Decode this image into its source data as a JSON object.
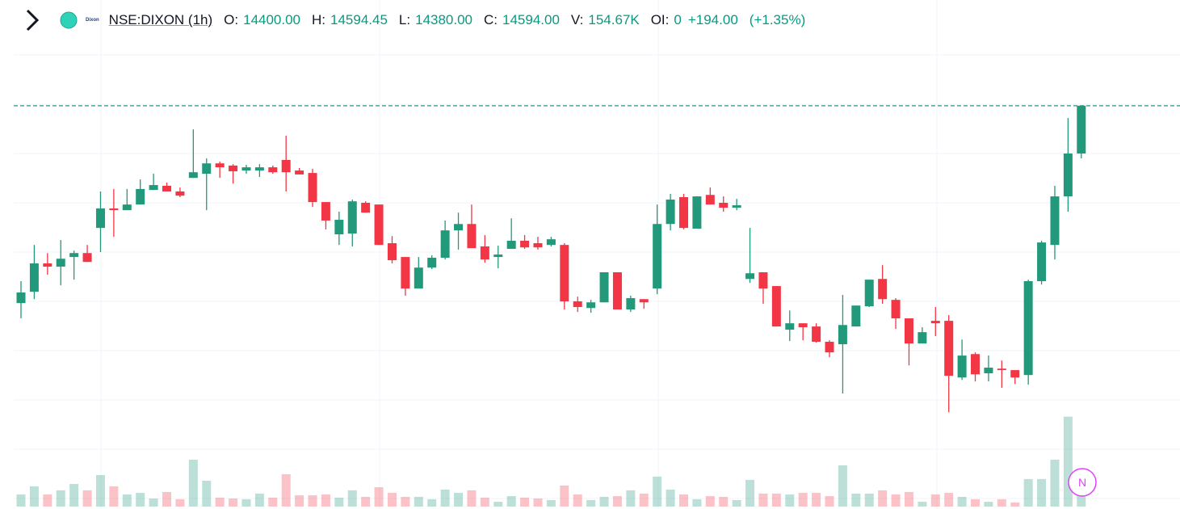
{
  "header": {
    "symbol": "NSE:DIXON (1h)",
    "logo": "Dixon",
    "items": [
      {
        "key": "O:",
        "value": "14400.00"
      },
      {
        "key": "H:",
        "value": "14594.45"
      },
      {
        "key": "L:",
        "value": "14380.00"
      },
      {
        "key": "C:",
        "value": "14594.00"
      },
      {
        "key": "V:",
        "value": "154.67K"
      },
      {
        "key": "OI:",
        "value": "0"
      }
    ],
    "change": "+194.00",
    "change_pct": "(+1.35%)"
  },
  "marker": "N",
  "chart_data": {
    "type": "candlestick",
    "open": [
      13793,
      13839,
      13954,
      13941,
      13980,
      13996,
      14098,
      14177,
      14170,
      14193,
      14252,
      14269,
      14246,
      14301,
      14318,
      14360,
      14351,
      14331,
      14331,
      14344,
      14374,
      14331,
      14321,
      14203,
      14072,
      14075,
      14200,
      14193,
      14036,
      13980,
      13852,
      13937,
      13977,
      14088,
      14114,
      14023,
      13980,
      14013,
      14046,
      14036,
      14029,
      14029,
      13800,
      13773,
      13796,
      13918,
      13767,
      13809,
      13852,
      14114,
      14223,
      14095,
      14232,
      14200,
      14180,
      13891,
      13918,
      13862,
      13685,
      13711,
      13698,
      13636,
      13626,
      13698,
      13780,
      13891,
      13806,
      13731,
      13629,
      13721,
      13721,
      13491,
      13586,
      13508,
      13527,
      13521,
      13501,
      13882,
      14029,
      14226,
      14400
    ],
    "high": [
      13882,
      14029,
      13996,
      14049,
      14006,
      14029,
      14246,
      14256,
      14256,
      14295,
      14318,
      14282,
      14262,
      14498,
      14380,
      14367,
      14357,
      14354,
      14357,
      14351,
      14472,
      14341,
      14338,
      14203,
      14164,
      14213,
      14206,
      14193,
      14065,
      13980,
      13980,
      13987,
      14128,
      14160,
      14193,
      14069,
      14026,
      14137,
      14069,
      14062,
      14062,
      14036,
      13819,
      13806,
      13918,
      13918,
      13823,
      13809,
      14193,
      14236,
      14236,
      14226,
      14262,
      14226,
      14216,
      14098,
      13918,
      13862,
      13763,
      13711,
      13711,
      13642,
      13826,
      13783,
      13888,
      13947,
      13813,
      13731,
      13695,
      13777,
      13744,
      13645,
      13593,
      13580,
      13560,
      13521,
      13888,
      14046,
      14269,
      14544,
      14594.45
    ],
    "low": [
      13731,
      13809,
      13908,
      13865,
      13888,
      13960,
      14000,
      14062,
      14170,
      14193,
      14252,
      14246,
      14223,
      14301,
      14170,
      14301,
      14278,
      14318,
      14305,
      14318,
      14246,
      14315,
      14183,
      14092,
      14029,
      14023,
      14160,
      14029,
      13954,
      13823,
      13852,
      13931,
      13970,
      14010,
      14016,
      13957,
      13934,
      14013,
      14013,
      14010,
      14023,
      13767,
      13757,
      13754,
      13796,
      13767,
      13757,
      13770,
      13829,
      14088,
      14092,
      14095,
      14193,
      14164,
      14170,
      13875,
      13790,
      13698,
      13639,
      13642,
      13632,
      13573,
      13426,
      13698,
      13777,
      13790,
      13688,
      13540,
      13629,
      13659,
      13350,
      13481,
      13475,
      13475,
      13449,
      13465,
      13462,
      13868,
      13970,
      14164,
      14380
    ],
    "close": [
      13836,
      13954,
      13941,
      13973,
      13996,
      13960,
      14177,
      14170,
      14193,
      14256,
      14272,
      14246,
      14229,
      14324,
      14360,
      14344,
      14328,
      14344,
      14344,
      14324,
      14324,
      14315,
      14203,
      14128,
      14131,
      14206,
      14160,
      14029,
      13967,
      13852,
      13937,
      13977,
      14088,
      14114,
      14016,
      13970,
      13990,
      14046,
      14019,
      14019,
      14052,
      13800,
      13777,
      13796,
      13918,
      13767,
      13813,
      13796,
      14114,
      14213,
      14098,
      14226,
      14193,
      14180,
      14190,
      13914,
      13852,
      13698,
      13711,
      13695,
      13636,
      13593,
      13704,
      13783,
      13888,
      13809,
      13731,
      13629,
      13675,
      13711,
      13498,
      13580,
      13504,
      13531,
      13521,
      13491,
      13882,
      14039,
      14226,
      14400,
      14594
    ],
    "volume": [
      86000,
      143000,
      86000,
      115000,
      160000,
      115000,
      223000,
      143000,
      86000,
      97000,
      57000,
      103000,
      52000,
      332000,
      183000,
      63000,
      57000,
      52000,
      92000,
      63000,
      229000,
      80000,
      80000,
      86000,
      63000,
      115000,
      69000,
      137000,
      97000,
      69000,
      69000,
      52000,
      120000,
      97000,
      115000,
      63000,
      34000,
      74000,
      63000,
      57000,
      46000,
      149000,
      86000,
      46000,
      69000,
      74000,
      115000,
      92000,
      212000,
      120000,
      86000,
      52000,
      74000,
      69000,
      46000,
      189000,
      92000,
      92000,
      86000,
      97000,
      97000,
      74000,
      292000,
      92000,
      92000,
      115000,
      86000,
      103000,
      34000,
      86000,
      97000,
      69000,
      52000,
      34000,
      52000,
      29000,
      195000,
      195000,
      332000,
      636000,
      154670
    ],
    "ylim": [
      13318,
      15023
    ],
    "yticks": [
      13400,
      13600,
      13800,
      14000,
      14200,
      14400,
      14600,
      14800
    ],
    "volume_ylim": [
      0,
      720000
    ],
    "grid": true,
    "up_color": "#22997a",
    "down_color": "#f23645"
  }
}
